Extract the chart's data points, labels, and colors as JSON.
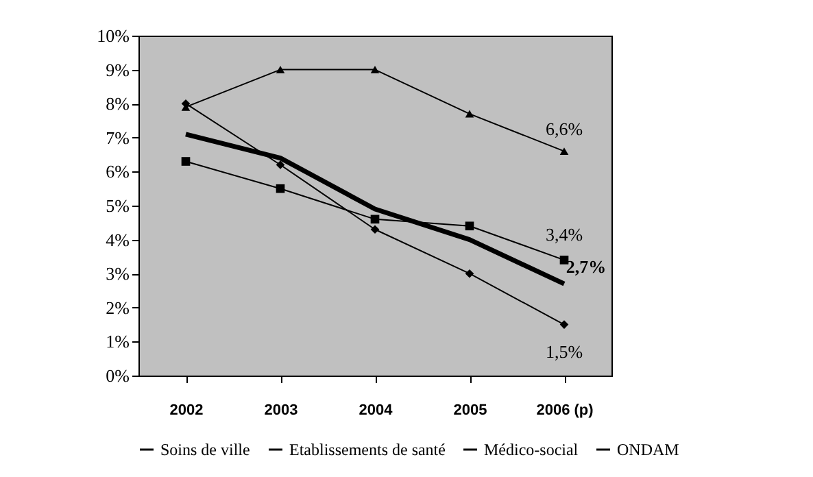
{
  "chart_data": {
    "type": "line",
    "categories": [
      "2002",
      "2003",
      "2004",
      "2005",
      "2006 (p)"
    ],
    "series": [
      {
        "name": "Soins de ville",
        "color": "#000000",
        "marker": "diamond",
        "values": [
          8.0,
          6.2,
          4.3,
          3.0,
          1.5
        ]
      },
      {
        "name": "Etablissements de santé",
        "color": "#000000",
        "marker": "square",
        "values": [
          6.3,
          5.5,
          4.6,
          4.4,
          3.4
        ]
      },
      {
        "name": "Médico-social",
        "color": "#000000",
        "marker": "triangle",
        "values": [
          7.9,
          9.0,
          9.0,
          7.7,
          6.6
        ]
      },
      {
        "name": "ONDAM",
        "color": "#000000",
        "marker": "none",
        "values": [
          7.1,
          6.4,
          4.9,
          4.0,
          2.7
        ]
      }
    ],
    "ylim": [
      0,
      10
    ],
    "yticks": [
      {
        "value": 0,
        "label": "0%"
      },
      {
        "value": 1,
        "label": "1%"
      },
      {
        "value": 2,
        "label": "2%"
      },
      {
        "value": 3,
        "label": "3%"
      },
      {
        "value": 4,
        "label": "4%"
      },
      {
        "value": 5,
        "label": "5%"
      },
      {
        "value": 6,
        "label": "6%"
      },
      {
        "value": 7,
        "label": "7%"
      },
      {
        "value": 8,
        "label": "8%"
      },
      {
        "value": 9,
        "label": "9%"
      },
      {
        "value": 10,
        "label": "10%"
      }
    ],
    "annotations": [
      {
        "text": "6,6%",
        "x": "2006 (p)",
        "y": 6.6
      },
      {
        "text": "3,4%",
        "x": "2006 (p)",
        "y": 3.4
      },
      {
        "text": "2,7%",
        "x": "2006 (p)",
        "y": 2.7
      },
      {
        "text": "1,5%",
        "x": "2006 (p)",
        "y": 1.5
      }
    ],
    "grid": false,
    "legend": "bottom"
  }
}
